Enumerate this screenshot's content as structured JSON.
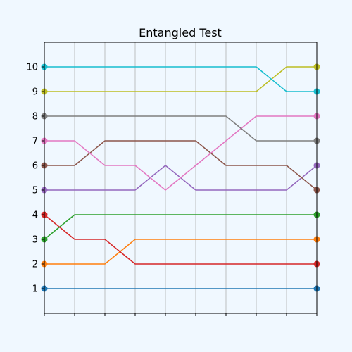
{
  "chart_data": {
    "type": "line",
    "title": "Entangled Test",
    "xlabel": "",
    "ylabel": "",
    "x": [
      0,
      1,
      2,
      3,
      4,
      5,
      6,
      7,
      8,
      9
    ],
    "xlim": [
      0,
      9
    ],
    "ylim": [
      0,
      11
    ],
    "yticks": [
      "1",
      "2",
      "3",
      "4",
      "5",
      "6",
      "7",
      "8",
      "9",
      "10"
    ],
    "grid": "vertical",
    "legend": "none",
    "series": [
      {
        "color": "#1f77b4",
        "values": [
          1,
          1,
          1,
          1,
          1,
          1,
          1,
          1,
          1,
          1
        ]
      },
      {
        "color": "#ff7f0e",
        "values": [
          2,
          2,
          2,
          3,
          3,
          3,
          3,
          3,
          3,
          3
        ]
      },
      {
        "color": "#2ca02c",
        "values": [
          3,
          4,
          4,
          4,
          4,
          4,
          4,
          4,
          4,
          4
        ]
      },
      {
        "color": "#d62728",
        "values": [
          4,
          3,
          3,
          2,
          2,
          2,
          2,
          2,
          2,
          2
        ]
      },
      {
        "color": "#9467bd",
        "values": [
          5,
          5,
          5,
          5,
          6,
          5,
          5,
          5,
          5,
          6
        ]
      },
      {
        "color": "#8c564b",
        "values": [
          6,
          6,
          7,
          7,
          7,
          7,
          6,
          6,
          6,
          5
        ]
      },
      {
        "color": "#e377c2",
        "values": [
          7,
          7,
          6,
          6,
          5,
          6,
          7,
          8,
          8,
          8
        ]
      },
      {
        "color": "#7f7f7f",
        "values": [
          8,
          8,
          8,
          8,
          8,
          8,
          8,
          7,
          7,
          7
        ]
      },
      {
        "color": "#bcbd22",
        "values": [
          9,
          9,
          9,
          9,
          9,
          9,
          9,
          9,
          10,
          10
        ]
      },
      {
        "color": "#17becf",
        "values": [
          10,
          10,
          10,
          10,
          10,
          10,
          10,
          10,
          9,
          9
        ]
      }
    ]
  }
}
